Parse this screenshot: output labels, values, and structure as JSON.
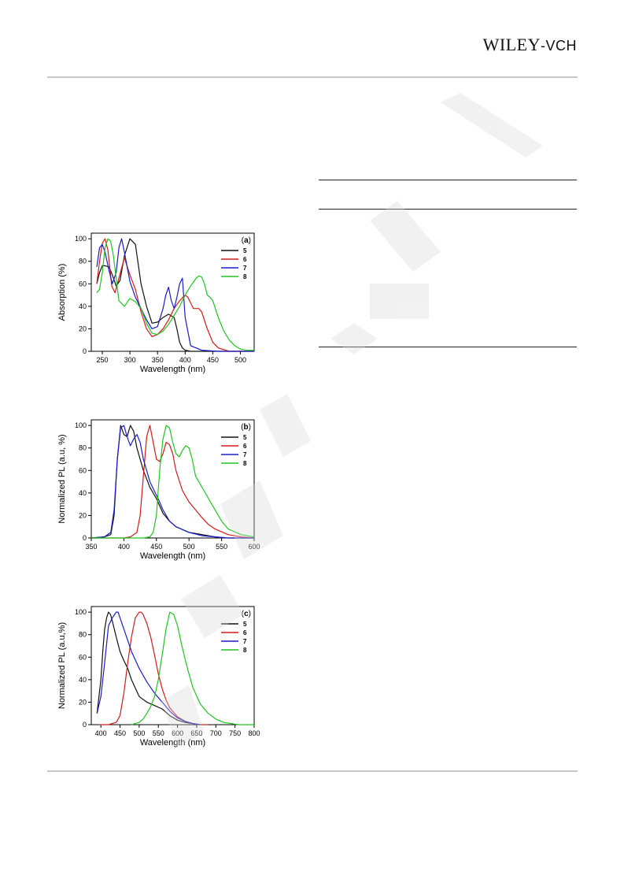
{
  "header": {
    "logo_main": "WILEY",
    "logo_suffix": "-VCH"
  },
  "watermark": {
    "text": "WILEY-VCH"
  },
  "colors": {
    "5": "#111111",
    "6": "#d01c1c",
    "7": "#1c1cc8",
    "8": "#21c421"
  },
  "chart_data": [
    {
      "type": "line",
      "panel": "(a)",
      "panel_letter": "a",
      "xlabel": "Wavelength (nm)",
      "ylabel": "Absorption (%)",
      "xlim": [
        230,
        525
      ],
      "ylim": [
        0,
        105
      ],
      "xticks": [
        250,
        300,
        350,
        400,
        450,
        500
      ],
      "yticks": [
        0,
        20,
        40,
        60,
        80,
        100
      ],
      "legend": [
        "5",
        "6",
        "7",
        "8"
      ],
      "series": [
        {
          "name": "5",
          "x": [
            240,
            245,
            250,
            255,
            262,
            268,
            275,
            282,
            290,
            300,
            310,
            320,
            330,
            340,
            350,
            360,
            370,
            380,
            385,
            390,
            395,
            400,
            410,
            430,
            460,
            525
          ],
          "y": [
            60,
            70,
            76,
            76,
            75,
            68,
            58,
            63,
            85,
            100,
            95,
            60,
            40,
            25,
            26,
            30,
            33,
            30,
            20,
            8,
            3,
            1,
            0,
            0,
            0,
            0
          ]
        },
        {
          "name": "6",
          "x": [
            240,
            245,
            250,
            255,
            260,
            267,
            273,
            280,
            290,
            300,
            310,
            320,
            330,
            340,
            350,
            360,
            370,
            380,
            390,
            400,
            405,
            410,
            415,
            420,
            425,
            430,
            440,
            450,
            460,
            480,
            525
          ],
          "y": [
            60,
            80,
            96,
            100,
            90,
            58,
            52,
            65,
            83,
            68,
            55,
            35,
            20,
            13,
            15,
            20,
            28,
            38,
            45,
            50,
            48,
            43,
            38,
            38,
            38,
            35,
            20,
            8,
            3,
            0,
            0
          ]
        },
        {
          "name": "7",
          "x": [
            240,
            245,
            250,
            255,
            262,
            268,
            275,
            280,
            285,
            290,
            300,
            310,
            320,
            330,
            340,
            350,
            360,
            365,
            370,
            375,
            380,
            385,
            390,
            395,
            400,
            410,
            430,
            460,
            525
          ],
          "y": [
            75,
            92,
            95,
            88,
            72,
            60,
            70,
            92,
            100,
            88,
            62,
            48,
            38,
            28,
            20,
            22,
            38,
            50,
            57,
            45,
            38,
            48,
            60,
            65,
            30,
            5,
            1,
            0,
            0
          ]
        },
        {
          "name": "8",
          "x": [
            240,
            245,
            250,
            255,
            260,
            265,
            270,
            280,
            290,
            300,
            310,
            320,
            330,
            340,
            350,
            360,
            370,
            380,
            390,
            400,
            410,
            420,
            425,
            430,
            435,
            440,
            445,
            450,
            460,
            470,
            480,
            490,
            500,
            510,
            525
          ],
          "y": [
            52,
            55,
            70,
            92,
            100,
            98,
            85,
            45,
            40,
            47,
            44,
            38,
            25,
            16,
            15,
            18,
            24,
            32,
            40,
            50,
            58,
            65,
            67,
            66,
            60,
            50,
            48,
            45,
            30,
            18,
            10,
            5,
            2,
            1,
            1
          ]
        }
      ]
    },
    {
      "type": "line",
      "panel": "(b)",
      "panel_letter": "b",
      "xlabel": "Wavelength (nm)",
      "ylabel": "Normalized PL (a.u, %)",
      "xlim": [
        350,
        600
      ],
      "ylim": [
        0,
        105
      ],
      "xticks": [
        350,
        400,
        450,
        500,
        550,
        600
      ],
      "yticks": [
        0,
        20,
        40,
        60,
        80,
        100
      ],
      "legend": [
        "5",
        "6",
        "7",
        "8"
      ],
      "series": [
        {
          "name": "5",
          "x": [
            350,
            370,
            380,
            385,
            390,
            395,
            400,
            405,
            410,
            415,
            420,
            430,
            440,
            450,
            460,
            470,
            480,
            500,
            520,
            540,
            560,
            600
          ],
          "y": [
            0,
            1,
            3,
            20,
            70,
            100,
            92,
            90,
            100,
            95,
            80,
            60,
            45,
            35,
            22,
            15,
            10,
            5,
            3,
            1,
            0,
            0
          ]
        },
        {
          "name": "6",
          "x": [
            350,
            400,
            410,
            420,
            425,
            430,
            435,
            440,
            445,
            450,
            455,
            460,
            465,
            470,
            475,
            480,
            490,
            500,
            510,
            520,
            530,
            540,
            560,
            580,
            600
          ],
          "y": [
            0,
            0,
            1,
            5,
            20,
            55,
            90,
            100,
            85,
            70,
            68,
            75,
            85,
            83,
            75,
            60,
            42,
            32,
            25,
            18,
            12,
            8,
            3,
            1,
            0
          ]
        },
        {
          "name": "7",
          "x": [
            350,
            370,
            380,
            385,
            390,
            395,
            400,
            405,
            410,
            415,
            420,
            425,
            430,
            440,
            450,
            455,
            460,
            470,
            480,
            500,
            520,
            540,
            560,
            600
          ],
          "y": [
            0,
            1,
            5,
            25,
            70,
            98,
            100,
            90,
            82,
            88,
            92,
            85,
            70,
            50,
            38,
            32,
            25,
            15,
            10,
            5,
            2,
            1,
            0,
            0
          ]
        },
        {
          "name": "8",
          "x": [
            350,
            430,
            440,
            445,
            450,
            455,
            460,
            465,
            470,
            475,
            480,
            485,
            490,
            495,
            500,
            505,
            510,
            520,
            530,
            540,
            550,
            560,
            580,
            600
          ],
          "y": [
            0,
            0,
            1,
            5,
            20,
            60,
            88,
            100,
            98,
            85,
            75,
            72,
            78,
            82,
            80,
            70,
            55,
            45,
            35,
            25,
            15,
            8,
            3,
            1
          ]
        }
      ]
    },
    {
      "type": "line",
      "panel": "(c)",
      "panel_letter": "c",
      "xlabel": "Wavelength (nm)",
      "ylabel": "Normalized PL (a.u,%)",
      "xlim": [
        375,
        800
      ],
      "ylim": [
        0,
        105
      ],
      "xticks": [
        400,
        450,
        500,
        550,
        600,
        650,
        700,
        750,
        800
      ],
      "yticks": [
        0,
        20,
        40,
        60,
        80,
        100
      ],
      "legend": [
        "5",
        "6",
        "7",
        "8"
      ],
      "series": [
        {
          "name": "5",
          "x": [
            390,
            400,
            405,
            410,
            415,
            420,
            425,
            430,
            440,
            450,
            460,
            470,
            480,
            500,
            520,
            540,
            560,
            580,
            600,
            620,
            640,
            660
          ],
          "y": [
            10,
            40,
            65,
            85,
            95,
            100,
            98,
            92,
            78,
            65,
            57,
            50,
            40,
            25,
            20,
            17,
            14,
            8,
            4,
            2,
            1,
            0
          ]
        },
        {
          "name": "6",
          "x": [
            395,
            420,
            440,
            450,
            460,
            470,
            480,
            490,
            500,
            505,
            510,
            520,
            530,
            540,
            550,
            560,
            570,
            580,
            600,
            620,
            640,
            660,
            680
          ],
          "y": [
            0,
            0,
            2,
            8,
            28,
            55,
            78,
            95,
            100,
            100,
            98,
            90,
            78,
            62,
            45,
            32,
            22,
            15,
            7,
            3,
            1,
            0,
            0
          ]
        },
        {
          "name": "7",
          "x": [
            390,
            400,
            410,
            420,
            430,
            440,
            445,
            450,
            460,
            470,
            480,
            500,
            520,
            540,
            560,
            580,
            600,
            620,
            640,
            660
          ],
          "y": [
            10,
            25,
            55,
            88,
            95,
            100,
            100,
            95,
            85,
            75,
            65,
            50,
            38,
            28,
            20,
            12,
            6,
            3,
            1,
            0
          ]
        },
        {
          "name": "8",
          "x": [
            480,
            500,
            510,
            520,
            530,
            540,
            550,
            560,
            570,
            580,
            590,
            600,
            610,
            620,
            630,
            640,
            660,
            680,
            700,
            720,
            740,
            760,
            800
          ],
          "y": [
            0,
            2,
            5,
            10,
            16,
            25,
            40,
            62,
            85,
            100,
            98,
            88,
            72,
            58,
            45,
            33,
            18,
            10,
            5,
            2,
            1,
            0,
            0
          ]
        }
      ]
    }
  ]
}
